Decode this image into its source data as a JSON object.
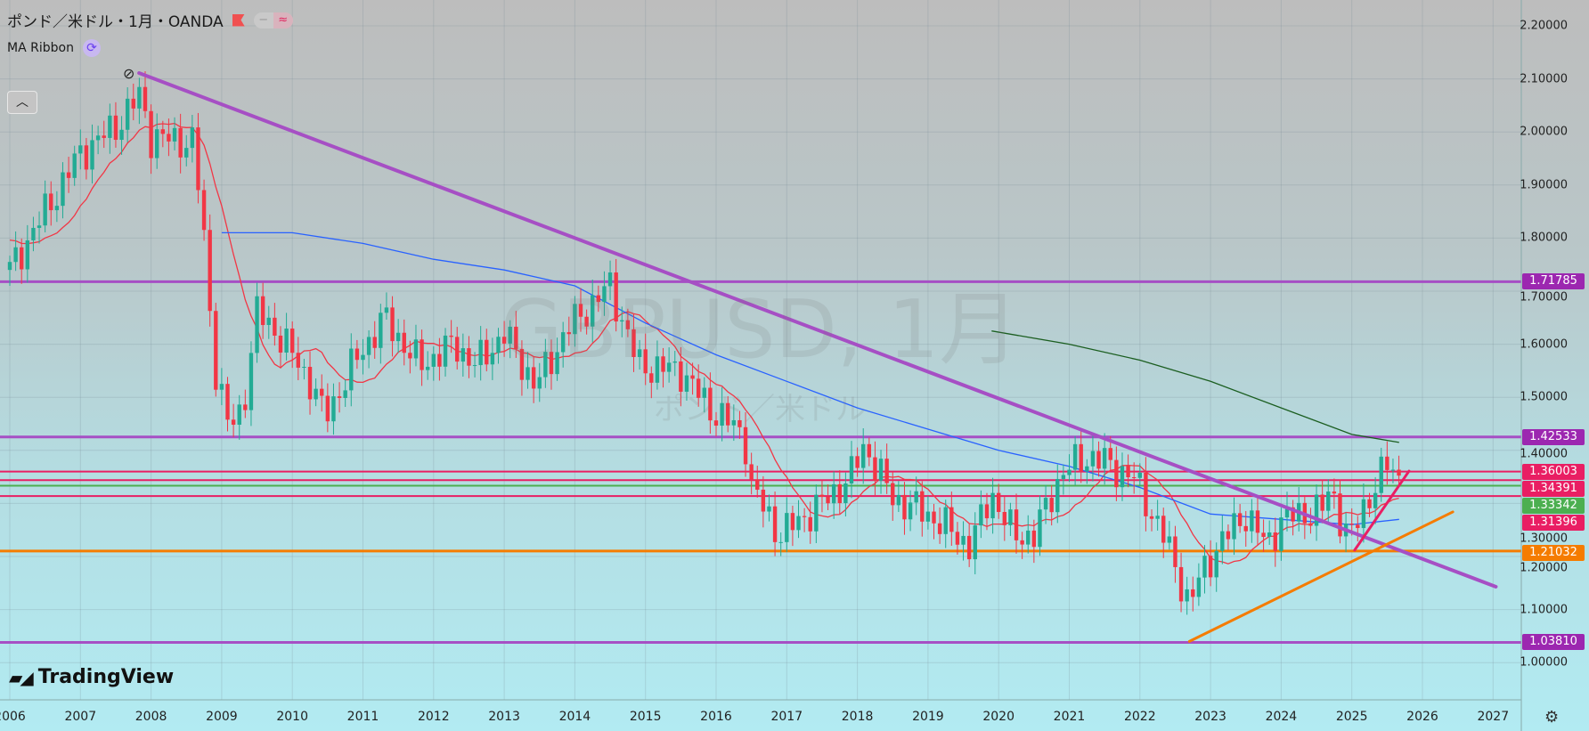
{
  "header": {
    "title": "ポンド／米ドル・1月・OANDA",
    "indicator": "MA Ribbon",
    "collapse_icon": "chevron-up",
    "pill_left": "−",
    "pill_right": "≈",
    "sync_icon": "⟳"
  },
  "watermark": {
    "symbol": "GBPUSD, 1月",
    "name": "ポンド／米ドル"
  },
  "logo": {
    "mark": "TV",
    "text": "TradingView"
  },
  "colors": {
    "up": "#26a69a",
    "down": "#f23645",
    "purple": "#9c27b0",
    "pink": "#e91e63",
    "green": "#4caf50",
    "orange": "#f57c00",
    "ma_fast": "#f23645",
    "ma_mid": "#2962ff",
    "ma_slow": "#1b5e20"
  },
  "price_axis": {
    "labels": [
      "2.20000",
      "2.10000",
      "2.00000",
      "1.90000",
      "1.80000",
      "1.70000",
      "1.60000",
      "1.50000",
      "1.40000",
      "1.30000",
      "1.20000",
      "1.10000",
      "1.00000"
    ]
  },
  "badges": [
    {
      "value": "1.71785",
      "color": "#9c27b0"
    },
    {
      "value": "1.42533",
      "color": "#9c27b0"
    },
    {
      "value": "1.36003",
      "color": "#e91e63"
    },
    {
      "value": "1.34391",
      "color": "#e91e63"
    },
    {
      "value": "1.33342",
      "color": "#4caf50"
    },
    {
      "value": "1.31396",
      "color": "#e91e63"
    },
    {
      "value": "1.21032",
      "color": "#f57c00"
    },
    {
      "value": "1.03810",
      "color": "#9c27b0"
    }
  ],
  "time_axis": {
    "labels": [
      "2006",
      "2007",
      "2008",
      "2009",
      "2010",
      "2011",
      "2012",
      "2013",
      "2014",
      "2015",
      "2016",
      "2017",
      "2018",
      "2019",
      "2020",
      "2021",
      "2022",
      "2023",
      "2024",
      "2025",
      "2026",
      "2027"
    ]
  },
  "chart_data": {
    "type": "candlestick",
    "interval": "1M",
    "ylim": [
      0.93,
      2.23
    ],
    "xlim": [
      2006,
      2027.5
    ],
    "close_path": [
      [
        2006.0,
        1.74
      ],
      [
        2006.5,
        1.85
      ],
      [
        2007.0,
        1.96
      ],
      [
        2007.5,
        2.01
      ],
      [
        2007.85,
        2.07
      ],
      [
        2008.0,
        1.99
      ],
      [
        2008.6,
        1.98
      ],
      [
        2008.75,
        1.8
      ],
      [
        2008.9,
        1.56
      ],
      [
        2009.1,
        1.44
      ],
      [
        2009.3,
        1.48
      ],
      [
        2009.5,
        1.66
      ],
      [
        2009.8,
        1.62
      ],
      [
        2010.3,
        1.52
      ],
      [
        2010.45,
        1.46
      ],
      [
        2010.9,
        1.57
      ],
      [
        2011.3,
        1.65
      ],
      [
        2011.8,
        1.56
      ],
      [
        2012.3,
        1.6
      ],
      [
        2012.6,
        1.56
      ],
      [
        2013.0,
        1.62
      ],
      [
        2013.45,
        1.52
      ],
      [
        2013.9,
        1.63
      ],
      [
        2014.5,
        1.71
      ],
      [
        2014.9,
        1.56
      ],
      [
        2015.5,
        1.55
      ],
      [
        2015.9,
        1.48
      ],
      [
        2016.4,
        1.43
      ],
      [
        2016.5,
        1.33
      ],
      [
        2016.9,
        1.24
      ],
      [
        2017.5,
        1.3
      ],
      [
        2017.9,
        1.35
      ],
      [
        2018.1,
        1.41
      ],
      [
        2018.5,
        1.31
      ],
      [
        2019.0,
        1.28
      ],
      [
        2019.6,
        1.22
      ],
      [
        2019.9,
        1.32
      ],
      [
        2020.2,
        1.24
      ],
      [
        2020.5,
        1.24
      ],
      [
        2020.9,
        1.36
      ],
      [
        2021.3,
        1.39
      ],
      [
        2021.9,
        1.35
      ],
      [
        2022.3,
        1.25
      ],
      [
        2022.7,
        1.11
      ],
      [
        2022.85,
        1.16
      ],
      [
        2023.1,
        1.22
      ],
      [
        2023.5,
        1.28
      ],
      [
        2023.8,
        1.22
      ],
      [
        2024.0,
        1.27
      ],
      [
        2024.6,
        1.29
      ],
      [
        2024.7,
        1.33
      ],
      [
        2024.9,
        1.25
      ],
      [
        2025.0,
        1.24
      ],
      [
        2025.3,
        1.33
      ],
      [
        2025.5,
        1.37
      ],
      [
        2025.67,
        1.35
      ]
    ],
    "ma_mid": [
      [
        2009.0,
        1.81
      ],
      [
        2010.0,
        1.81
      ],
      [
        2011.0,
        1.79
      ],
      [
        2012.0,
        1.76
      ],
      [
        2013.0,
        1.74
      ],
      [
        2014.0,
        1.71
      ],
      [
        2015.0,
        1.64
      ],
      [
        2016.0,
        1.58
      ],
      [
        2017.0,
        1.53
      ],
      [
        2018.0,
        1.48
      ],
      [
        2019.0,
        1.44
      ],
      [
        2020.0,
        1.4
      ],
      [
        2021.0,
        1.37
      ],
      [
        2022.0,
        1.33
      ],
      [
        2023.0,
        1.28
      ],
      [
        2024.0,
        1.27
      ],
      [
        2025.0,
        1.26
      ],
      [
        2025.67,
        1.27
      ]
    ],
    "ma_slow": [
      [
        2019.9,
        1.625
      ],
      [
        2021.0,
        1.6
      ],
      [
        2022.0,
        1.57
      ],
      [
        2023.0,
        1.53
      ],
      [
        2024.0,
        1.48
      ],
      [
        2025.0,
        1.43
      ],
      [
        2025.67,
        1.415
      ]
    ],
    "horizontal_lines": [
      {
        "price": 1.71785,
        "color": "purple",
        "width": 3
      },
      {
        "price": 1.42533,
        "color": "purple",
        "width": 3
      },
      {
        "price": 1.36003,
        "color": "pink",
        "width": 2
      },
      {
        "price": 1.34391,
        "color": "pink",
        "width": 2
      },
      {
        "price": 1.33342,
        "color": "green",
        "width": 2
      },
      {
        "price": 1.31396,
        "color": "pink",
        "width": 2
      },
      {
        "price": 1.21032,
        "color": "orange",
        "width": 3
      },
      {
        "price": 1.0381,
        "color": "purple",
        "width": 3
      }
    ],
    "trend_lines": [
      {
        "from": [
          2007.83,
          2.111
        ],
        "to": [
          2027.04,
          1.143
        ],
        "color": "purple",
        "width": 4
      },
      {
        "from": [
          2022.7,
          1.04
        ],
        "to": [
          2026.43,
          1.284
        ],
        "color": "orange",
        "width": 3
      },
      {
        "from": [
          2025.04,
          1.212
        ],
        "to": [
          2025.81,
          1.361
        ],
        "color": "pink",
        "width": 3
      }
    ]
  }
}
